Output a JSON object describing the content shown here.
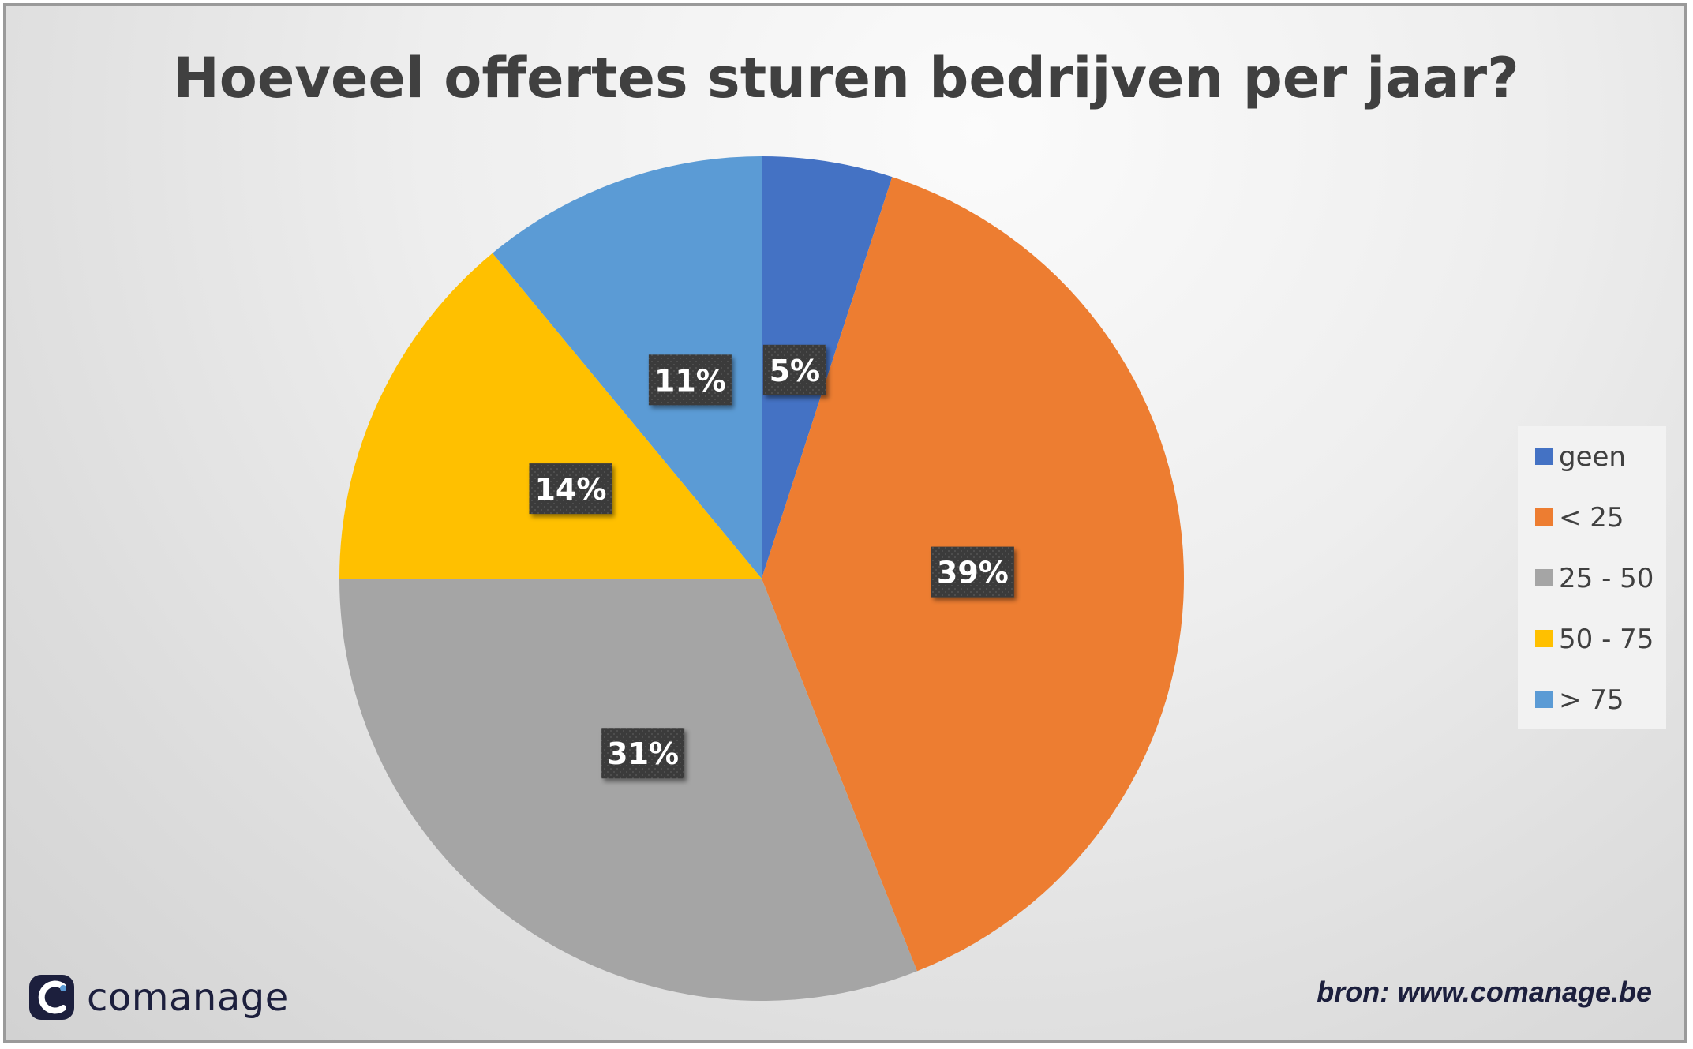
{
  "chart_data": {
    "type": "pie",
    "title": "Hoeveel offertes sturen bedrijven per jaar?",
    "categories": [
      "geen",
      "< 25",
      "25 - 50",
      "50 - 75",
      "> 75"
    ],
    "values": [
      5,
      39,
      31,
      14,
      11
    ],
    "data_labels": [
      "5%",
      "39%",
      "31%",
      "14%",
      "11%"
    ],
    "colors": [
      "#4472C4",
      "#ED7D31",
      "#A5A5A5",
      "#FFC000",
      "#5B9BD5"
    ],
    "start_angle_deg": 0,
    "direction": "clockwise",
    "legend": {
      "placement": "right"
    }
  },
  "branding": {
    "logo_icon": "comanage-c-logo-icon",
    "logo_color": "#1c1f3d",
    "brand_name": "comanage",
    "source": "bron: www.comanage.be"
  }
}
